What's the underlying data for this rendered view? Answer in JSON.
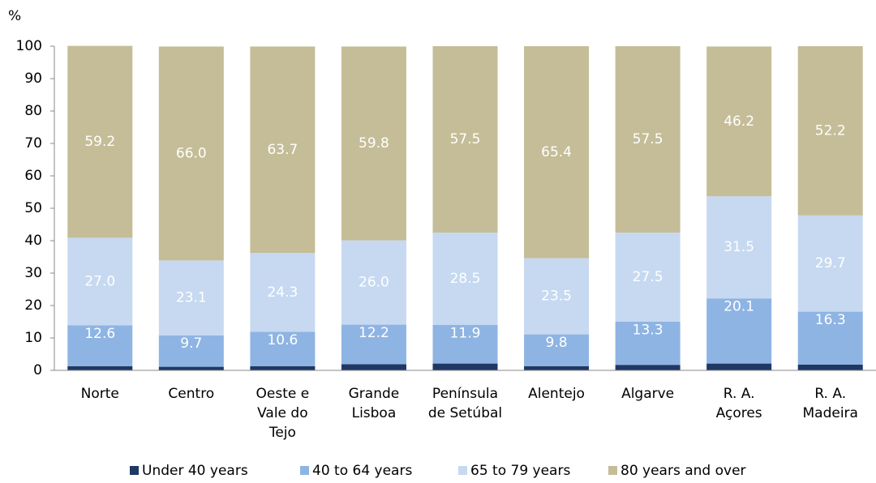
{
  "chart_data": {
    "type": "stacked_bar",
    "y_label": "%",
    "categories": [
      "Norte",
      "Centro",
      "Oeste e\nVale do\nTejo",
      "Grande\nLisboa",
      "Península\nde Setúbal",
      "Alentejo",
      "Algarve",
      "R. A.\nAçores",
      "R. A.\nMadeira"
    ],
    "series": [
      {
        "name": "Under 40 years",
        "color": "#1f3864",
        "values": [
          1.3,
          1.1,
          1.3,
          1.9,
          2.1,
          1.3,
          1.7,
          2.1,
          1.8
        ]
      },
      {
        "name": "40 to 64 years",
        "color": "#8eb4e3",
        "values": [
          12.6,
          9.7,
          10.6,
          12.2,
          11.9,
          9.8,
          13.3,
          20.1,
          16.3
        ]
      },
      {
        "name": "65 to 79 years",
        "color": "#c6d9f1",
        "values": [
          27.0,
          23.1,
          24.3,
          26.0,
          28.5,
          23.5,
          27.5,
          31.5,
          29.7
        ],
        "value_labels": [
          "27.0",
          "23.1",
          "24.3",
          "26.0",
          "28.5",
          "23.5",
          "27.5",
          "31.5",
          "29.7"
        ]
      },
      {
        "name": "80 years and over",
        "color": "#c4bd97",
        "values": [
          59.2,
          66.0,
          63.7,
          59.8,
          57.5,
          65.4,
          57.5,
          46.2,
          52.2
        ],
        "value_labels": [
          "59.2",
          "66.0",
          "63.7",
          "59.8",
          "57.5",
          "65.4",
          "57.5",
          "46.2",
          "52.2"
        ]
      }
    ],
    "ylim": [
      0,
      100
    ],
    "yticks": [
      0,
      10,
      20,
      30,
      40,
      50,
      60,
      70,
      80,
      90,
      100
    ],
    "grid": false,
    "legend": "bottom"
  }
}
